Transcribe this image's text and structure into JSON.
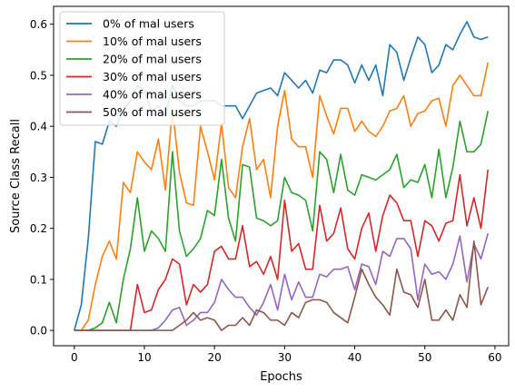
{
  "chart_data": {
    "type": "line",
    "title": "",
    "xlabel": "Epochs",
    "ylabel": "Source Class Recall",
    "xlim": [
      -2.95,
      61.95
    ],
    "ylim": [
      -0.03,
      0.635
    ],
    "xticks": [
      0,
      10,
      20,
      30,
      40,
      50,
      60
    ],
    "yticks": [
      0.0,
      0.1,
      0.2,
      0.3,
      0.4,
      0.5,
      0.6
    ],
    "grid": false,
    "legend_position": "top-left",
    "x": [
      0,
      1,
      2,
      3,
      4,
      5,
      6,
      7,
      8,
      9,
      10,
      11,
      12,
      13,
      14,
      15,
      16,
      17,
      18,
      19,
      20,
      21,
      22,
      23,
      24,
      25,
      26,
      27,
      28,
      29,
      30,
      31,
      32,
      33,
      34,
      35,
      36,
      37,
      38,
      39,
      40,
      41,
      42,
      43,
      44,
      45,
      46,
      47,
      48,
      49,
      50,
      51,
      52,
      53,
      54,
      55,
      56,
      57,
      58,
      59
    ],
    "series": [
      {
        "name": "0% of mal users",
        "color": "#1f77b4",
        "values": [
          0.0,
          0.05,
          0.18,
          0.37,
          0.365,
          0.41,
          0.4,
          0.43,
          0.45,
          0.48,
          0.47,
          0.43,
          0.44,
          0.42,
          0.48,
          0.45,
          0.44,
          0.44,
          0.45,
          0.45,
          0.45,
          0.44,
          0.44,
          0.44,
          0.415,
          0.44,
          0.465,
          0.47,
          0.475,
          0.46,
          0.505,
          0.49,
          0.475,
          0.49,
          0.465,
          0.51,
          0.505,
          0.53,
          0.53,
          0.52,
          0.485,
          0.52,
          0.49,
          0.52,
          0.46,
          0.56,
          0.545,
          0.49,
          0.535,
          0.575,
          0.56,
          0.505,
          0.52,
          0.56,
          0.55,
          0.58,
          0.605,
          0.575,
          0.57,
          0.575
        ]
      },
      {
        "name": "10% of mal users",
        "color": "#ff7f0e",
        "values": [
          0.0,
          0.0,
          0.02,
          0.09,
          0.145,
          0.175,
          0.14,
          0.29,
          0.27,
          0.35,
          0.33,
          0.315,
          0.375,
          0.275,
          0.435,
          0.31,
          0.25,
          0.245,
          0.4,
          0.35,
          0.295,
          0.405,
          0.28,
          0.26,
          0.36,
          0.415,
          0.315,
          0.335,
          0.26,
          0.4,
          0.47,
          0.375,
          0.36,
          0.36,
          0.3,
          0.46,
          0.42,
          0.385,
          0.435,
          0.435,
          0.39,
          0.41,
          0.39,
          0.38,
          0.4,
          0.43,
          0.435,
          0.46,
          0.4,
          0.425,
          0.43,
          0.45,
          0.455,
          0.4,
          0.48,
          0.5,
          0.48,
          0.46,
          0.46,
          0.525
        ]
      },
      {
        "name": "20% of mal users",
        "color": "#2ca02c",
        "values": [
          0.0,
          0.0,
          0.0,
          0.005,
          0.015,
          0.055,
          0.015,
          0.1,
          0.16,
          0.26,
          0.155,
          0.195,
          0.18,
          0.155,
          0.35,
          0.195,
          0.145,
          0.16,
          0.18,
          0.235,
          0.225,
          0.335,
          0.22,
          0.175,
          0.325,
          0.32,
          0.22,
          0.215,
          0.205,
          0.215,
          0.3,
          0.27,
          0.265,
          0.255,
          0.195,
          0.35,
          0.335,
          0.27,
          0.345,
          0.275,
          0.265,
          0.305,
          0.3,
          0.295,
          0.305,
          0.315,
          0.345,
          0.28,
          0.295,
          0.29,
          0.325,
          0.26,
          0.355,
          0.26,
          0.32,
          0.41,
          0.35,
          0.35,
          0.365,
          0.43
        ]
      },
      {
        "name": "30% of mal users",
        "color": "#d62728",
        "values": [
          0.0,
          0.0,
          0.0,
          0.0,
          0.0,
          0.0,
          0.0,
          0.0,
          0.0,
          0.09,
          0.035,
          0.04,
          0.08,
          0.1,
          0.14,
          0.13,
          0.05,
          0.09,
          0.075,
          0.09,
          0.155,
          0.165,
          0.14,
          0.14,
          0.205,
          0.125,
          0.135,
          0.11,
          0.145,
          0.1,
          0.255,
          0.155,
          0.17,
          0.12,
          0.12,
          0.245,
          0.175,
          0.19,
          0.24,
          0.16,
          0.14,
          0.2,
          0.23,
          0.155,
          0.225,
          0.265,
          0.25,
          0.215,
          0.215,
          0.145,
          0.215,
          0.205,
          0.175,
          0.21,
          0.215,
          0.305,
          0.205,
          0.26,
          0.2,
          0.315
        ]
      },
      {
        "name": "40% of mal users",
        "color": "#9467bd",
        "values": [
          0.0,
          0.0,
          0.0,
          0.0,
          0.0,
          0.0,
          0.0,
          0.0,
          0.0,
          0.0,
          0.0,
          0.0,
          0.005,
          0.02,
          0.04,
          0.045,
          0.01,
          0.02,
          0.035,
          0.035,
          0.055,
          0.1,
          0.08,
          0.065,
          0.065,
          0.045,
          0.03,
          0.055,
          0.09,
          0.04,
          0.11,
          0.06,
          0.095,
          0.065,
          0.065,
          0.11,
          0.105,
          0.12,
          0.12,
          0.125,
          0.08,
          0.13,
          0.125,
          0.09,
          0.155,
          0.145,
          0.18,
          0.18,
          0.16,
          0.06,
          0.13,
          0.11,
          0.115,
          0.1,
          0.13,
          0.185,
          0.095,
          0.17,
          0.14,
          0.19
        ]
      },
      {
        "name": "50% of mal users",
        "color": "#8c564b",
        "values": [
          0.0,
          0.0,
          0.0,
          0.0,
          0.0,
          0.0,
          0.0,
          0.0,
          0.0,
          0.0,
          0.0,
          0.0,
          0.0,
          0.0,
          0.0,
          0.01,
          0.02,
          0.035,
          0.02,
          0.025,
          0.02,
          0.0,
          0.01,
          0.01,
          0.025,
          0.01,
          0.04,
          0.035,
          0.02,
          0.02,
          0.01,
          0.035,
          0.025,
          0.055,
          0.06,
          0.06,
          0.055,
          0.035,
          0.025,
          0.015,
          0.065,
          0.12,
          0.09,
          0.065,
          0.05,
          0.03,
          0.12,
          0.075,
          0.07,
          0.045,
          0.1,
          0.02,
          0.02,
          0.04,
          0.02,
          0.07,
          0.045,
          0.175,
          0.05,
          0.085
        ]
      }
    ]
  }
}
